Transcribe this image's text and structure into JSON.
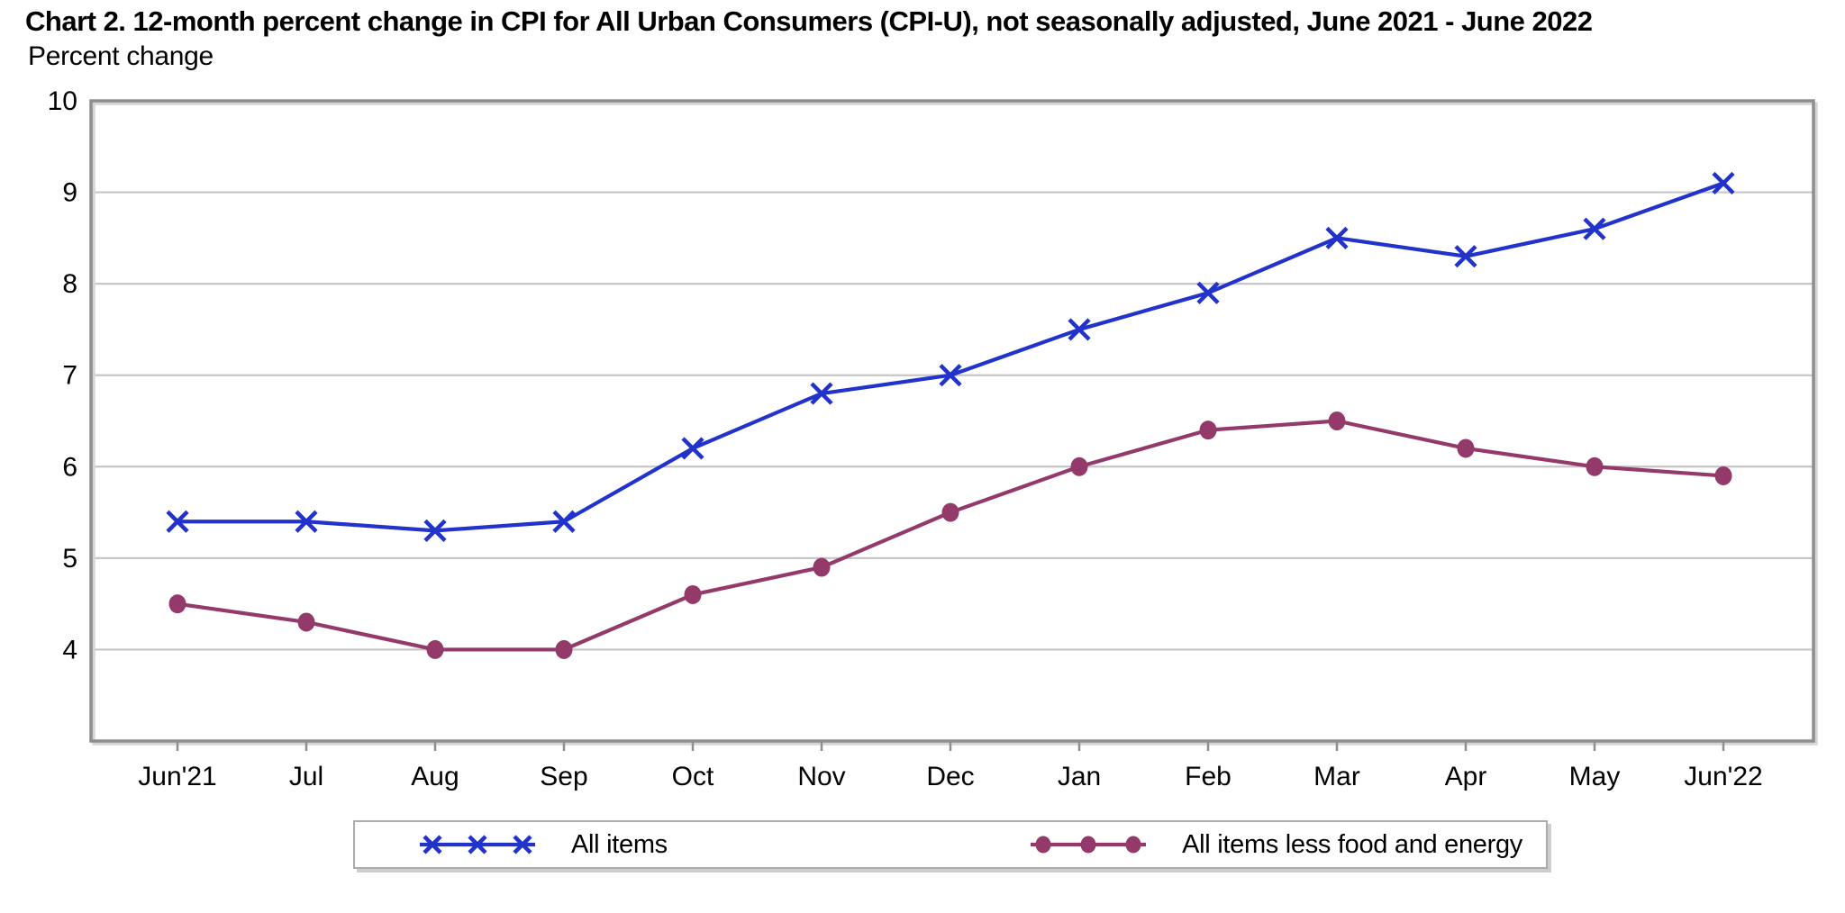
{
  "chart": {
    "title": "Chart 2. 12-month percent change in CPI for All Urban Consumers (CPI-U), not seasonally adjusted, June 2021 - June 2022",
    "unit_label": "Percent change"
  },
  "chart_data": {
    "type": "line",
    "title": "Chart 2. 12-month percent change in CPI for All Urban Consumers (CPI-U), not seasonally adjusted, June 2021 - June 2022",
    "ylabel": "Percent change",
    "xlabel": "",
    "categories": [
      "Jun'21",
      "Jul",
      "Aug",
      "Sep",
      "Oct",
      "Nov",
      "Dec",
      "Jan",
      "Feb",
      "Mar",
      "Apr",
      "May",
      "Jun'22"
    ],
    "series": [
      {
        "name": "All items",
        "marker": "x",
        "color": "#2233CC",
        "values": [
          5.4,
          5.4,
          5.3,
          5.4,
          6.2,
          6.8,
          7.0,
          7.5,
          7.9,
          8.5,
          8.3,
          8.6,
          9.1
        ]
      },
      {
        "name": "All items less food and energy",
        "marker": "circle",
        "color": "#943A6B",
        "values": [
          4.5,
          4.3,
          4.0,
          4.0,
          4.6,
          4.9,
          5.5,
          6.0,
          6.4,
          6.5,
          6.2,
          6.0,
          5.9
        ]
      }
    ],
    "ylim": [
      3,
      10
    ],
    "yticks": [
      4,
      5,
      6,
      7,
      8,
      9,
      10
    ],
    "grid": true,
    "legend_position": "bottom"
  },
  "style_colors": {
    "gridline": "#c6c6c6",
    "frame": "#8e8e8e",
    "tick": "#8e8e8e",
    "text": "#000000"
  }
}
